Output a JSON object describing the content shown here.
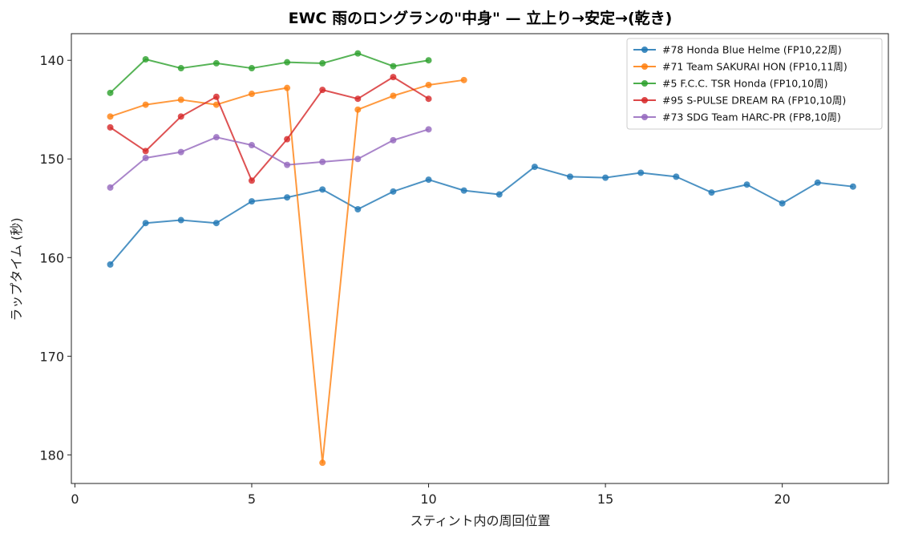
{
  "chart_data": {
    "type": "line",
    "title": "EWC 雨のロングランの\"中身\" — 立上り→安定→(乾き)",
    "xlabel": "スティント内の周回位置",
    "ylabel": "ラップタイム (秒)",
    "xlim": [
      -0.1,
      23.0
    ],
    "ylim": [
      182.9,
      137.3
    ],
    "y_inverted": true,
    "xticks": [
      0,
      5,
      10,
      15,
      20
    ],
    "yticks": [
      140,
      150,
      160,
      170,
      180
    ],
    "grid": false,
    "legend_position": "top-right",
    "series": [
      {
        "name": "#78 Honda Blue Helme (FP10,22周)",
        "color": "#1f77b4",
        "x": [
          1,
          2,
          3,
          4,
          5,
          6,
          7,
          8,
          9,
          10,
          11,
          12,
          13,
          14,
          15,
          16,
          17,
          18,
          19,
          20,
          21,
          22
        ],
        "y": [
          160.7,
          156.5,
          156.2,
          156.5,
          154.3,
          153.9,
          153.1,
          155.1,
          153.3,
          152.1,
          153.2,
          153.6,
          150.8,
          151.8,
          151.9,
          151.4,
          151.8,
          153.4,
          152.6,
          154.5,
          152.4,
          152.8
        ]
      },
      {
        "name": "#71 Team SAKURAI HON (FP10,11周)",
        "color": "#ff7f0e",
        "x": [
          1,
          2,
          3,
          4,
          5,
          6,
          7,
          8,
          9,
          10,
          11
        ],
        "y": [
          145.7,
          144.5,
          144.0,
          144.5,
          143.4,
          142.8,
          180.8,
          145.0,
          143.6,
          142.5,
          142.0
        ]
      },
      {
        "name": "#5 F.C.C. TSR Honda (FP10,10周)",
        "color": "#2ca02c",
        "x": [
          1,
          2,
          3,
          4,
          5,
          6,
          7,
          8,
          9,
          10
        ],
        "y": [
          143.3,
          139.9,
          140.8,
          140.3,
          140.8,
          140.2,
          140.3,
          139.3,
          140.6,
          140.0
        ]
      },
      {
        "name": "#95 S-PULSE DREAM RA (FP10,10周)",
        "color": "#d62728",
        "x": [
          1,
          2,
          3,
          4,
          5,
          6,
          7,
          8,
          9,
          10
        ],
        "y": [
          146.8,
          149.2,
          145.7,
          143.7,
          152.2,
          148.0,
          143.0,
          143.9,
          141.7,
          143.9
        ]
      },
      {
        "name": "#73 SDG Team HARC-PR (FP8,10周)",
        "color": "#9467bd",
        "x": [
          1,
          2,
          3,
          4,
          5,
          6,
          7,
          8,
          9,
          10
        ],
        "y": [
          152.9,
          149.9,
          149.3,
          147.8,
          148.6,
          150.6,
          150.3,
          150.0,
          148.1,
          147.0
        ]
      }
    ]
  }
}
